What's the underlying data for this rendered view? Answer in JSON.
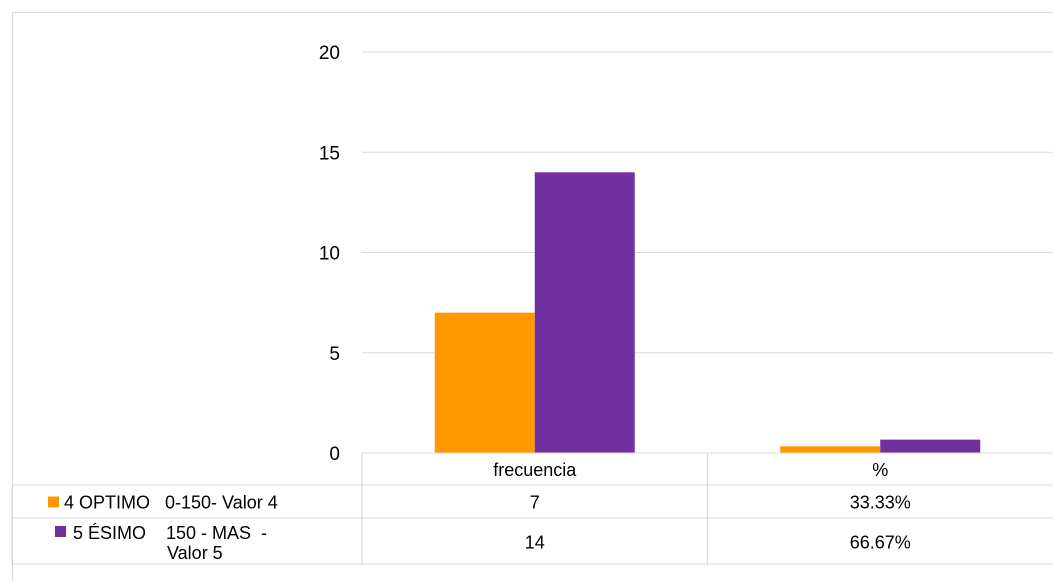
{
  "chart_data": {
    "type": "bar",
    "categories": [
      "frecuencia",
      "%"
    ],
    "series": [
      {
        "name": "4 OPTIMO   0-150- Valor 4",
        "values": [
          7,
          0.3333
        ],
        "labels": [
          "7",
          "33.33%"
        ],
        "color": "#FF9900"
      },
      {
        "name": "5 ÉSIMO    150 - MAS  - Valor 5",
        "values": [
          14,
          0.6667
        ],
        "labels": [
          "14",
          "66.67%"
        ],
        "color": "#7030A0"
      }
    ],
    "legend_lines": [
      [
        "4 OPTIMO   0-150- Valor 4"
      ],
      [
        "5 ÉSIMO    150 - MAS  -",
        "Valor 5"
      ]
    ],
    "yticks": [
      "0",
      "5",
      "10",
      "15",
      "20"
    ],
    "ylim": [
      0,
      20
    ],
    "grid": true,
    "legend": "data-table"
  }
}
